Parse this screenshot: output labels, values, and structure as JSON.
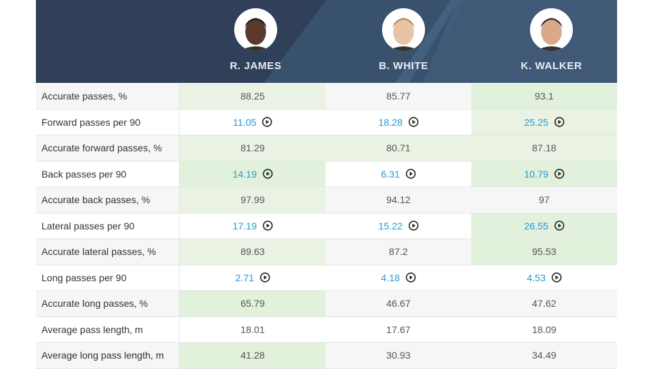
{
  "players": [
    "R. JAMES",
    "B. WHITE",
    "K. WALKER"
  ],
  "table": {
    "rows": [
      [
        "Accurate passes, %",
        88.25,
        85.77,
        93.1
      ],
      [
        "Forward passes per 90",
        11.05,
        18.28,
        25.25
      ],
      [
        "Accurate forward passes, %",
        81.29,
        80.71,
        87.18
      ],
      [
        "Back passes per 90",
        14.19,
        6.31,
        10.79
      ],
      [
        "Accurate back passes, %",
        97.99,
        94.12,
        97
      ],
      [
        "Lateral passes per 90",
        17.19,
        15.22,
        26.55
      ],
      [
        "Accurate lateral passes, %",
        89.63,
        87.2,
        95.53
      ],
      [
        "Long passes per 90",
        2.71,
        4.18,
        4.53
      ],
      [
        "Accurate long passes, %",
        65.79,
        46.67,
        47.62
      ],
      [
        "Average pass length, m",
        18.01,
        17.67,
        18.09
      ],
      [
        "Average long pass length, m",
        41.28,
        30.93,
        34.49
      ]
    ]
  }
}
